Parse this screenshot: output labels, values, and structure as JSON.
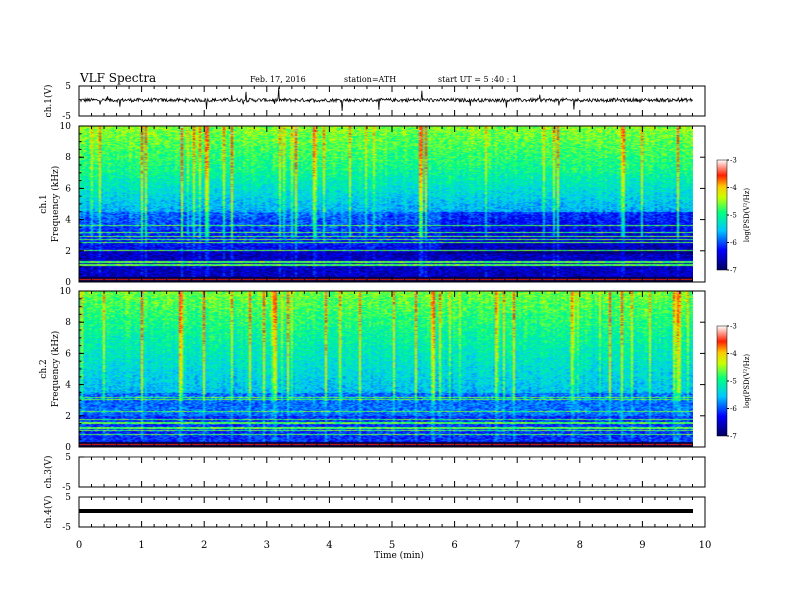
{
  "header": {
    "title": "VLF  Spectra",
    "date": "Feb. 17, 2016",
    "station": "station=ATH",
    "start_ut": "start  UT  =   5  :40 : 1"
  },
  "chart_data": [
    {
      "type": "line",
      "panel": "ch1-waveform",
      "ylabel": "ch.1(V)",
      "ylim": [
        -5,
        5
      ],
      "yticks": [
        "5",
        "-5"
      ],
      "xlim": [
        0,
        10
      ],
      "series": [
        {
          "baseline": 0.3,
          "noise_amplitude": 0.6
        }
      ]
    },
    {
      "type": "heatmap",
      "panel": "ch1-spectrogram",
      "ylabel": "ch.1\nFrequency (kHz)",
      "ylabel_lines": [
        "ch.1",
        "Frequency (kHz)"
      ],
      "ylim": [
        0,
        10
      ],
      "yticks": [
        "0",
        "2",
        "4",
        "6",
        "8",
        "10"
      ],
      "xlim": [
        0,
        9.8
      ],
      "colorbar": {
        "label": "log(PSD(V²/Hz)",
        "range": [
          -7,
          -3
        ],
        "ticks": [
          "-3",
          "-4",
          "-5",
          "-6",
          "-7"
        ]
      }
    },
    {
      "type": "heatmap",
      "panel": "ch2-spectrogram",
      "ylabel": "ch.2\nFrequency (kHz)",
      "ylabel_lines": [
        "ch.2",
        "Frequency (kHz)"
      ],
      "ylim": [
        0,
        10
      ],
      "yticks": [
        "0",
        "2",
        "4",
        "6",
        "8",
        "10"
      ],
      "xlim": [
        0,
        9.8
      ],
      "colorbar": {
        "label": "log(PSD(V²/Hz)",
        "range": [
          -7,
          -3
        ],
        "ticks": [
          "-3",
          "-4",
          "-5",
          "-6",
          "-7"
        ]
      }
    },
    {
      "type": "line",
      "panel": "ch3-waveform",
      "ylabel": "ch.3(V)",
      "ylim": [
        -5,
        5
      ],
      "yticks": [
        "5",
        "-5"
      ],
      "series": [
        {
          "baseline": 5,
          "noise_amplitude": 0.05
        }
      ]
    },
    {
      "type": "line",
      "panel": "ch4-waveform",
      "ylabel": "ch.4(V)",
      "ylim": [
        -5,
        5
      ],
      "yticks": [
        "5",
        "-5"
      ],
      "series": [
        {
          "baseline": 0,
          "noise_amplitude": 0.15
        }
      ]
    }
  ],
  "x_axis": {
    "label": "Time  (min)",
    "range": [
      0,
      10
    ],
    "ticks": [
      "0",
      "1",
      "2",
      "3",
      "4",
      "5",
      "6",
      "7",
      "8",
      "9",
      "10"
    ]
  },
  "colors": {
    "low": "#00004a",
    "mid": "#00b4ff",
    "high": "#00ff50",
    "peak": "#ff2000",
    "trace": "#000000"
  }
}
